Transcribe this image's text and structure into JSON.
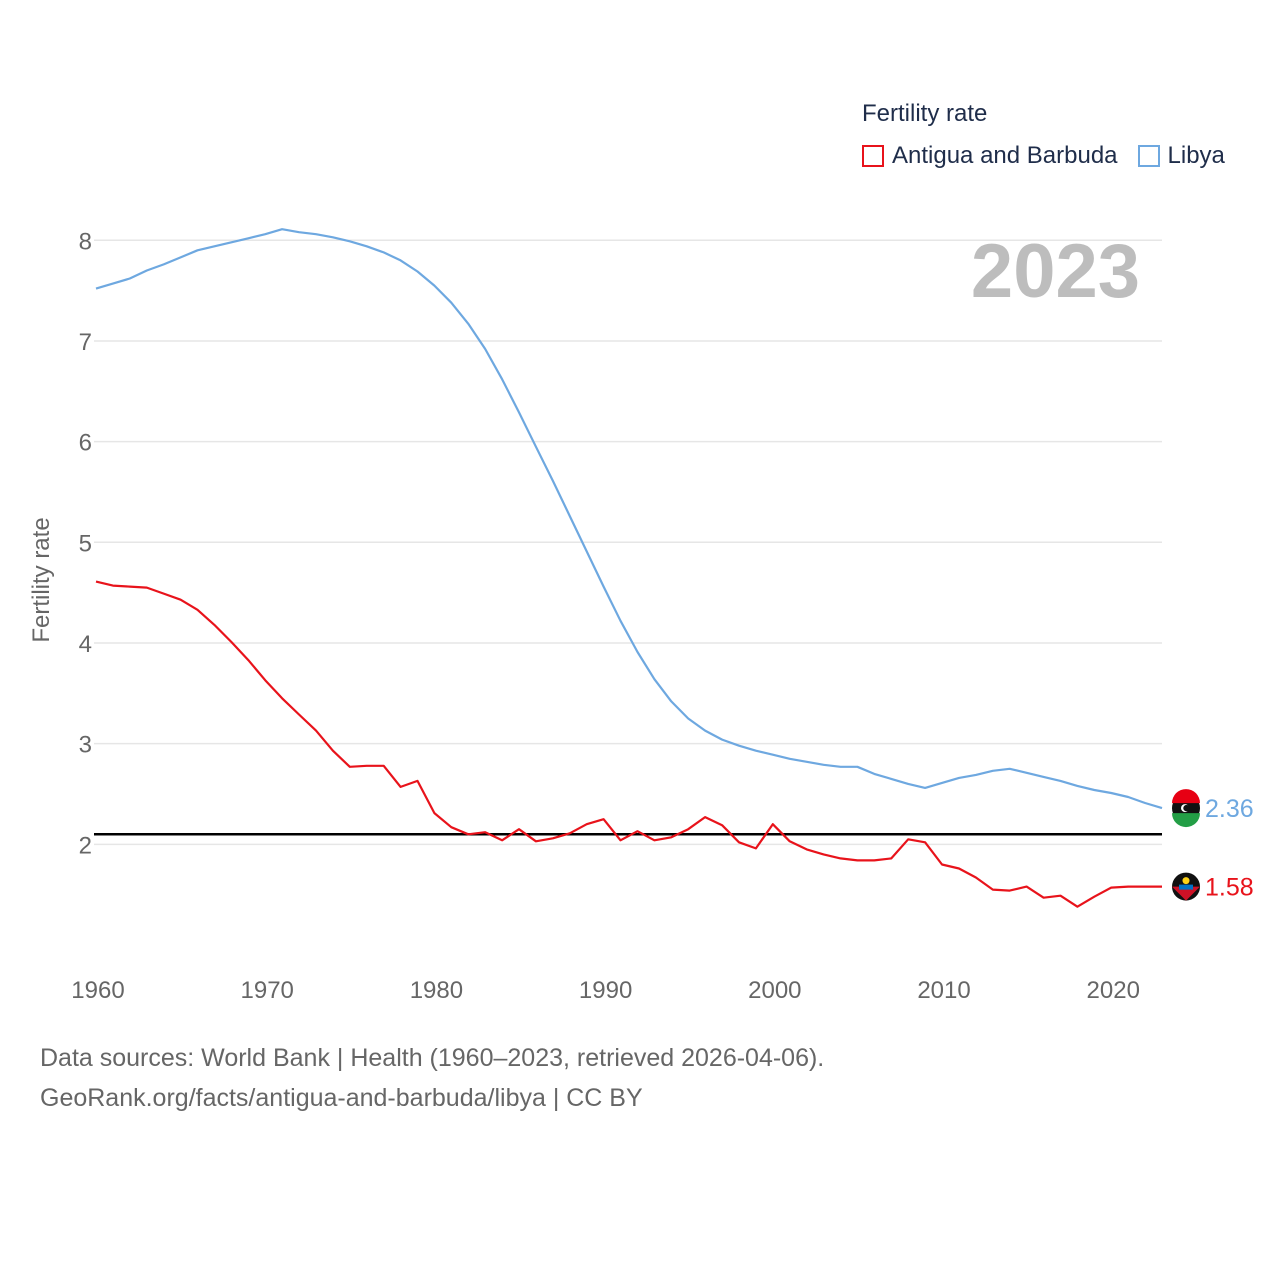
{
  "legend": {
    "title": "Fertility rate",
    "items": [
      {
        "label": "Antigua and Barbuda",
        "color": "#e8131b"
      },
      {
        "label": "Libya",
        "color": "#6ea8e0"
      }
    ]
  },
  "current_year": "2023",
  "footer": {
    "line1": "Data sources: World Bank | Health (1960–2023, retrieved 2026-04-06).",
    "line2": "GeoRank.org/facts/antigua-and-barbuda/libya | CC BY"
  },
  "chart_data": {
    "type": "line",
    "title": "Fertility rate",
    "xlabel": "",
    "ylabel": "Fertility rate",
    "xlim": [
      1960,
      2023
    ],
    "ylim": [
      1.0,
      8.4
    ],
    "xticks": [
      1960,
      1970,
      1980,
      1990,
      2000,
      2010,
      2020
    ],
    "yticks": [
      2,
      3,
      4,
      5,
      6,
      7,
      8
    ],
    "grid": true,
    "reference_line": {
      "y": 2.1,
      "color": "#000000"
    },
    "x": [
      1960,
      1961,
      1962,
      1963,
      1964,
      1965,
      1966,
      1967,
      1968,
      1969,
      1970,
      1971,
      1972,
      1973,
      1974,
      1975,
      1976,
      1977,
      1978,
      1979,
      1980,
      1981,
      1982,
      1983,
      1984,
      1985,
      1986,
      1987,
      1988,
      1989,
      1990,
      1991,
      1992,
      1993,
      1994,
      1995,
      1996,
      1997,
      1998,
      1999,
      2000,
      2001,
      2002,
      2003,
      2004,
      2005,
      2006,
      2007,
      2008,
      2009,
      2010,
      2011,
      2012,
      2013,
      2014,
      2015,
      2016,
      2017,
      2018,
      2019,
      2020,
      2021,
      2022,
      2023
    ],
    "series": [
      {
        "name": "Antigua and Barbuda",
        "color": "#e8131b",
        "end_label": "1.58",
        "values": [
          4.61,
          4.57,
          4.56,
          4.55,
          4.49,
          4.43,
          4.33,
          4.18,
          4.01,
          3.83,
          3.63,
          3.45,
          3.29,
          3.13,
          2.93,
          2.77,
          2.78,
          2.78,
          2.57,
          2.63,
          2.31,
          2.17,
          2.1,
          2.12,
          2.04,
          2.15,
          2.03,
          2.06,
          2.11,
          2.2,
          2.25,
          2.04,
          2.13,
          2.04,
          2.07,
          2.15,
          2.27,
          2.19,
          2.02,
          1.96,
          2.2,
          2.03,
          1.95,
          1.9,
          1.86,
          1.84,
          1.84,
          1.86,
          2.05,
          2.02,
          1.8,
          1.76,
          1.67,
          1.55,
          1.54,
          1.58,
          1.47,
          1.49,
          1.38,
          1.48,
          1.57,
          1.58,
          1.58,
          1.58
        ]
      },
      {
        "name": "Libya",
        "color": "#6ea8e0",
        "end_label": "2.36",
        "values": [
          7.52,
          7.57,
          7.62,
          7.7,
          7.76,
          7.83,
          7.9,
          7.94,
          7.98,
          8.02,
          8.06,
          8.11,
          8.08,
          8.06,
          8.03,
          7.99,
          7.94,
          7.88,
          7.8,
          7.69,
          7.55,
          7.38,
          7.17,
          6.92,
          6.62,
          6.29,
          5.95,
          5.61,
          5.26,
          4.91,
          4.56,
          4.22,
          3.91,
          3.64,
          3.42,
          3.25,
          3.13,
          3.04,
          2.98,
          2.93,
          2.89,
          2.85,
          2.82,
          2.79,
          2.77,
          2.77,
          2.7,
          2.65,
          2.6,
          2.56,
          2.61,
          2.66,
          2.69,
          2.73,
          2.75,
          2.71,
          2.67,
          2.63,
          2.58,
          2.54,
          2.51,
          2.47,
          2.41,
          2.36
        ]
      }
    ]
  }
}
